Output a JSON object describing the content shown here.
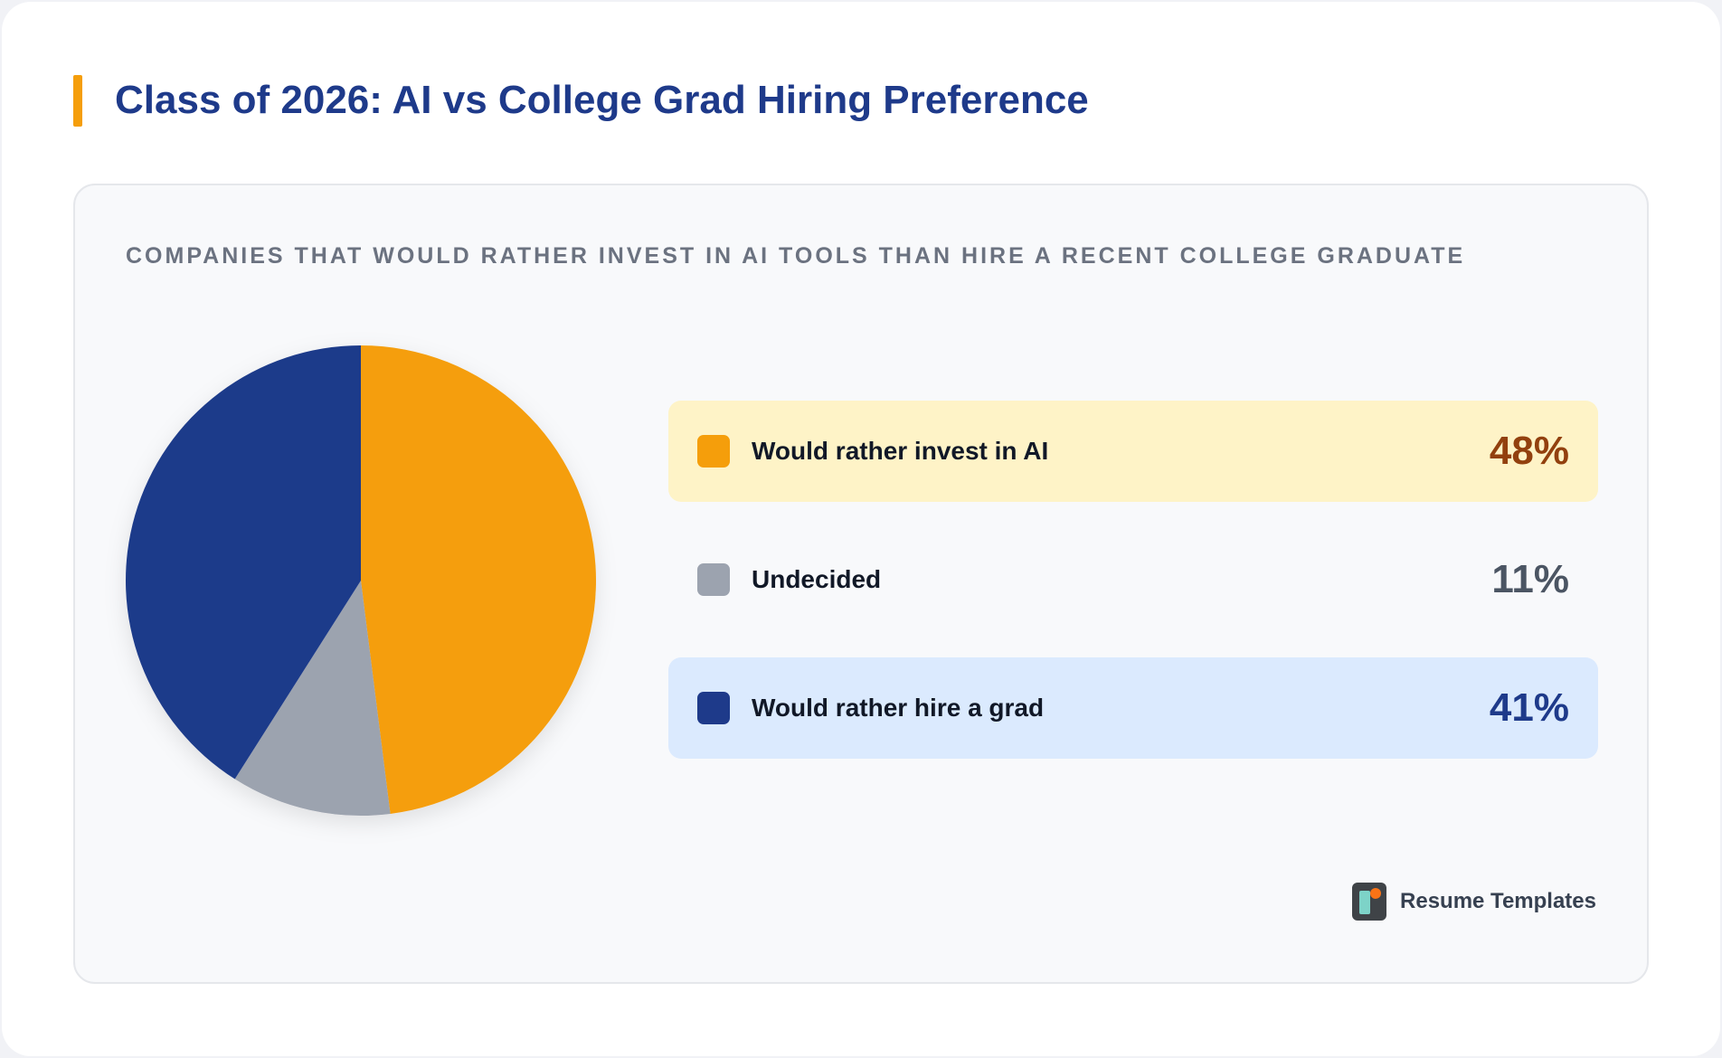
{
  "header": {
    "title": "Class of 2026: AI vs College Grad Hiring Preference"
  },
  "chart_data": {
    "type": "pie",
    "title": "Companies that would rather invest in AI tools than hire a recent college graduate",
    "categories": [
      "Would rather invest in AI",
      "Undecided",
      "Would rather hire a grad"
    ],
    "values": [
      48,
      11,
      41
    ],
    "value_labels": [
      "48%",
      "11%",
      "41%"
    ],
    "colors": [
      "#f59e0b",
      "#9ca3af",
      "#1e3a8a"
    ],
    "row_backgrounds": [
      "#fef3c7",
      "transparent",
      "#dbeafe"
    ],
    "value_colors": [
      "#92400e",
      "#4b5563",
      "#1e3a8a"
    ],
    "legend_placement": "right"
  },
  "brand": {
    "name": "Resume Templates",
    "icon": "resume-templates-logo-icon"
  }
}
